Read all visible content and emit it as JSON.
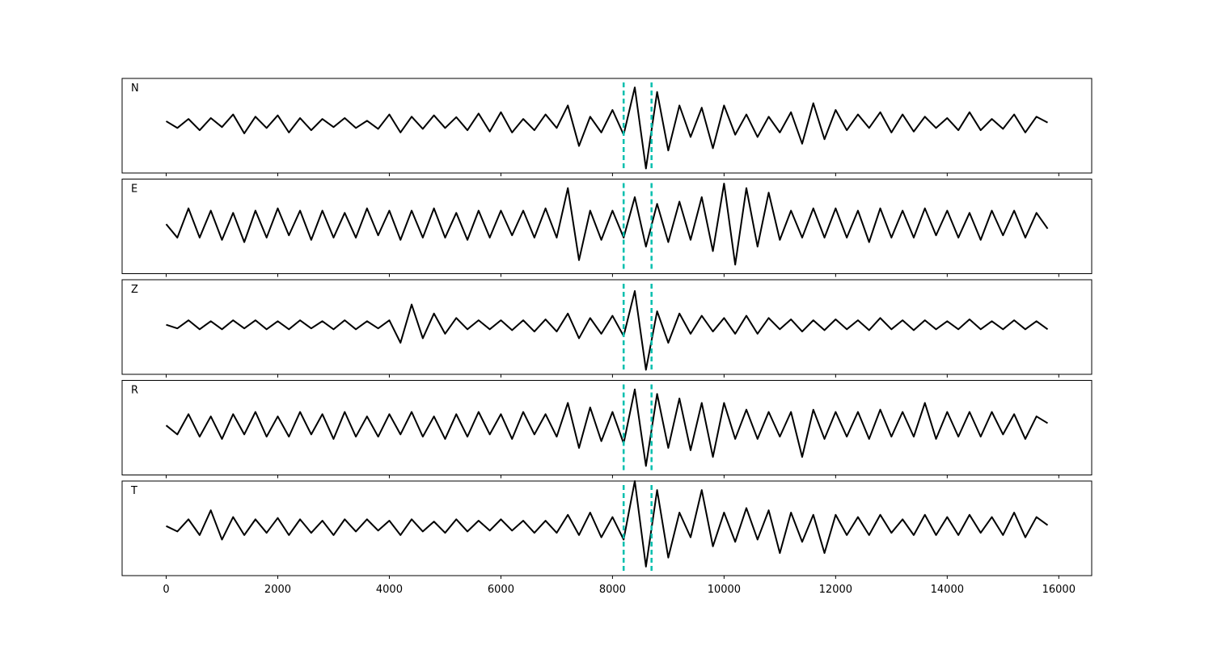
{
  "chart_data": {
    "type": "line",
    "x": [
      0,
      200,
      400,
      600,
      800,
      1000,
      1200,
      1400,
      1600,
      1800,
      2000,
      2200,
      2400,
      2600,
      2800,
      3000,
      3200,
      3400,
      3600,
      3800,
      4000,
      4200,
      4400,
      4600,
      4800,
      5000,
      5200,
      5400,
      5600,
      5800,
      6000,
      6200,
      6400,
      6600,
      6800,
      7000,
      7200,
      7400,
      7600,
      7800,
      8000,
      8200,
      8400,
      8600,
      8800,
      9000,
      9200,
      9400,
      9600,
      9800,
      10000,
      10200,
      10400,
      10600,
      10800,
      11000,
      11200,
      11400,
      11600,
      11800,
      12000,
      12200,
      12400,
      12600,
      12800,
      13000,
      13200,
      13400,
      13600,
      13800,
      14000,
      14200,
      14400,
      14600,
      14800,
      15000,
      15200,
      15400,
      15600,
      15800
    ],
    "xlim": [
      -790,
      16590
    ],
    "xticks": [
      0,
      2000,
      4000,
      6000,
      8000,
      10000,
      12000,
      14000,
      16000
    ],
    "ylim": [
      -1.1,
      1.0
    ],
    "vlines": {
      "color": "#00bfae",
      "values": [
        8200,
        8700
      ]
    },
    "series": [
      {
        "name": "N",
        "color": "#000000",
        "values": [
          0.05,
          -0.1,
          0.1,
          -0.15,
          0.12,
          -0.08,
          0.2,
          -0.22,
          0.15,
          -0.1,
          0.18,
          -0.2,
          0.12,
          -0.15,
          0.1,
          -0.08,
          0.12,
          -0.1,
          0.06,
          -0.12,
          0.2,
          -0.2,
          0.15,
          -0.12,
          0.18,
          -0.1,
          0.14,
          -0.15,
          0.22,
          -0.18,
          0.25,
          -0.2,
          0.1,
          -0.15,
          0.2,
          -0.1,
          0.4,
          -0.5,
          0.15,
          -0.2,
          0.3,
          -0.25,
          0.8,
          -1.0,
          0.7,
          -0.6,
          0.4,
          -0.3,
          0.35,
          -0.55,
          0.4,
          -0.25,
          0.2,
          -0.3,
          0.15,
          -0.2,
          0.25,
          -0.45,
          0.45,
          -0.35,
          0.3,
          -0.15,
          0.2,
          -0.1,
          0.25,
          -0.2,
          0.2,
          -0.18,
          0.15,
          -0.1,
          0.12,
          -0.15,
          0.25,
          -0.15,
          0.1,
          -0.12,
          0.2,
          -0.2,
          0.15,
          0.02
        ]
      },
      {
        "name": "E",
        "color": "#000000",
        "values": [
          0,
          -0.3,
          0.35,
          -0.3,
          0.3,
          -0.35,
          0.25,
          -0.4,
          0.3,
          -0.3,
          0.35,
          -0.25,
          0.3,
          -0.35,
          0.3,
          -0.3,
          0.25,
          -0.3,
          0.35,
          -0.25,
          0.3,
          -0.35,
          0.3,
          -0.3,
          0.35,
          -0.3,
          0.25,
          -0.35,
          0.3,
          -0.3,
          0.3,
          -0.25,
          0.3,
          -0.3,
          0.35,
          -0.3,
          0.8,
          -0.8,
          0.3,
          -0.35,
          0.3,
          -0.3,
          0.6,
          -0.5,
          0.45,
          -0.4,
          0.5,
          -0.35,
          0.6,
          -0.6,
          0.9,
          -0.9,
          0.8,
          -0.5,
          0.7,
          -0.35,
          0.3,
          -0.3,
          0.35,
          -0.3,
          0.35,
          -0.3,
          0.3,
          -0.4,
          0.35,
          -0.3,
          0.3,
          -0.3,
          0.35,
          -0.25,
          0.3,
          -0.3,
          0.25,
          -0.35,
          0.3,
          -0.25,
          0.3,
          -0.3,
          0.25,
          -0.1
        ]
      },
      {
        "name": "Z",
        "color": "#000000",
        "values": [
          0,
          -0.08,
          0.1,
          -0.1,
          0.08,
          -0.1,
          0.1,
          -0.08,
          0.1,
          -0.1,
          0.08,
          -0.1,
          0.1,
          -0.08,
          0.08,
          -0.1,
          0.1,
          -0.1,
          0.08,
          -0.08,
          0.1,
          -0.4,
          0.45,
          -0.3,
          0.25,
          -0.2,
          0.15,
          -0.1,
          0.1,
          -0.1,
          0.1,
          -0.12,
          0.1,
          -0.15,
          0.12,
          -0.15,
          0.25,
          -0.3,
          0.15,
          -0.2,
          0.2,
          -0.25,
          0.75,
          -1.0,
          0.3,
          -0.4,
          0.25,
          -0.2,
          0.2,
          -0.15,
          0.15,
          -0.2,
          0.2,
          -0.2,
          0.15,
          -0.1,
          0.12,
          -0.15,
          0.1,
          -0.12,
          0.12,
          -0.1,
          0.1,
          -0.12,
          0.15,
          -0.1,
          0.1,
          -0.12,
          0.1,
          -0.1,
          0.08,
          -0.1,
          0.12,
          -0.1,
          0.08,
          -0.1,
          0.1,
          -0.1,
          0.08,
          -0.1
        ]
      },
      {
        "name": "R",
        "color": "#000000",
        "values": [
          0,
          -0.2,
          0.25,
          -0.25,
          0.2,
          -0.3,
          0.25,
          -0.2,
          0.3,
          -0.25,
          0.2,
          -0.25,
          0.3,
          -0.2,
          0.25,
          -0.3,
          0.3,
          -0.25,
          0.2,
          -0.25,
          0.25,
          -0.2,
          0.3,
          -0.25,
          0.2,
          -0.3,
          0.25,
          -0.25,
          0.3,
          -0.2,
          0.25,
          -0.3,
          0.3,
          -0.2,
          0.25,
          -0.25,
          0.5,
          -0.5,
          0.4,
          -0.35,
          0.3,
          -0.4,
          0.8,
          -0.9,
          0.7,
          -0.5,
          0.6,
          -0.55,
          0.5,
          -0.7,
          0.5,
          -0.3,
          0.35,
          -0.3,
          0.3,
          -0.25,
          0.3,
          -0.7,
          0.35,
          -0.3,
          0.3,
          -0.25,
          0.3,
          -0.3,
          0.35,
          -0.25,
          0.3,
          -0.25,
          0.5,
          -0.3,
          0.3,
          -0.25,
          0.3,
          -0.25,
          0.3,
          -0.2,
          0.25,
          -0.3,
          0.2,
          0.05
        ]
      },
      {
        "name": "T",
        "color": "#000000",
        "values": [
          0,
          -0.12,
          0.15,
          -0.2,
          0.35,
          -0.3,
          0.2,
          -0.2,
          0.15,
          -0.15,
          0.18,
          -0.2,
          0.15,
          -0.15,
          0.12,
          -0.2,
          0.15,
          -0.12,
          0.15,
          -0.1,
          0.12,
          -0.2,
          0.15,
          -0.12,
          0.1,
          -0.15,
          0.15,
          -0.12,
          0.12,
          -0.1,
          0.15,
          -0.1,
          0.12,
          -0.15,
          0.12,
          -0.15,
          0.25,
          -0.2,
          0.3,
          -0.25,
          0.2,
          -0.3,
          1.0,
          -0.9,
          0.8,
          -0.7,
          0.3,
          -0.25,
          0.8,
          -0.45,
          0.3,
          -0.35,
          0.4,
          -0.3,
          0.35,
          -0.6,
          0.3,
          -0.35,
          0.25,
          -0.6,
          0.25,
          -0.2,
          0.2,
          -0.2,
          0.25,
          -0.15,
          0.15,
          -0.2,
          0.25,
          -0.2,
          0.2,
          -0.2,
          0.25,
          -0.15,
          0.2,
          -0.2,
          0.3,
          -0.25,
          0.2,
          0.02
        ]
      }
    ]
  }
}
